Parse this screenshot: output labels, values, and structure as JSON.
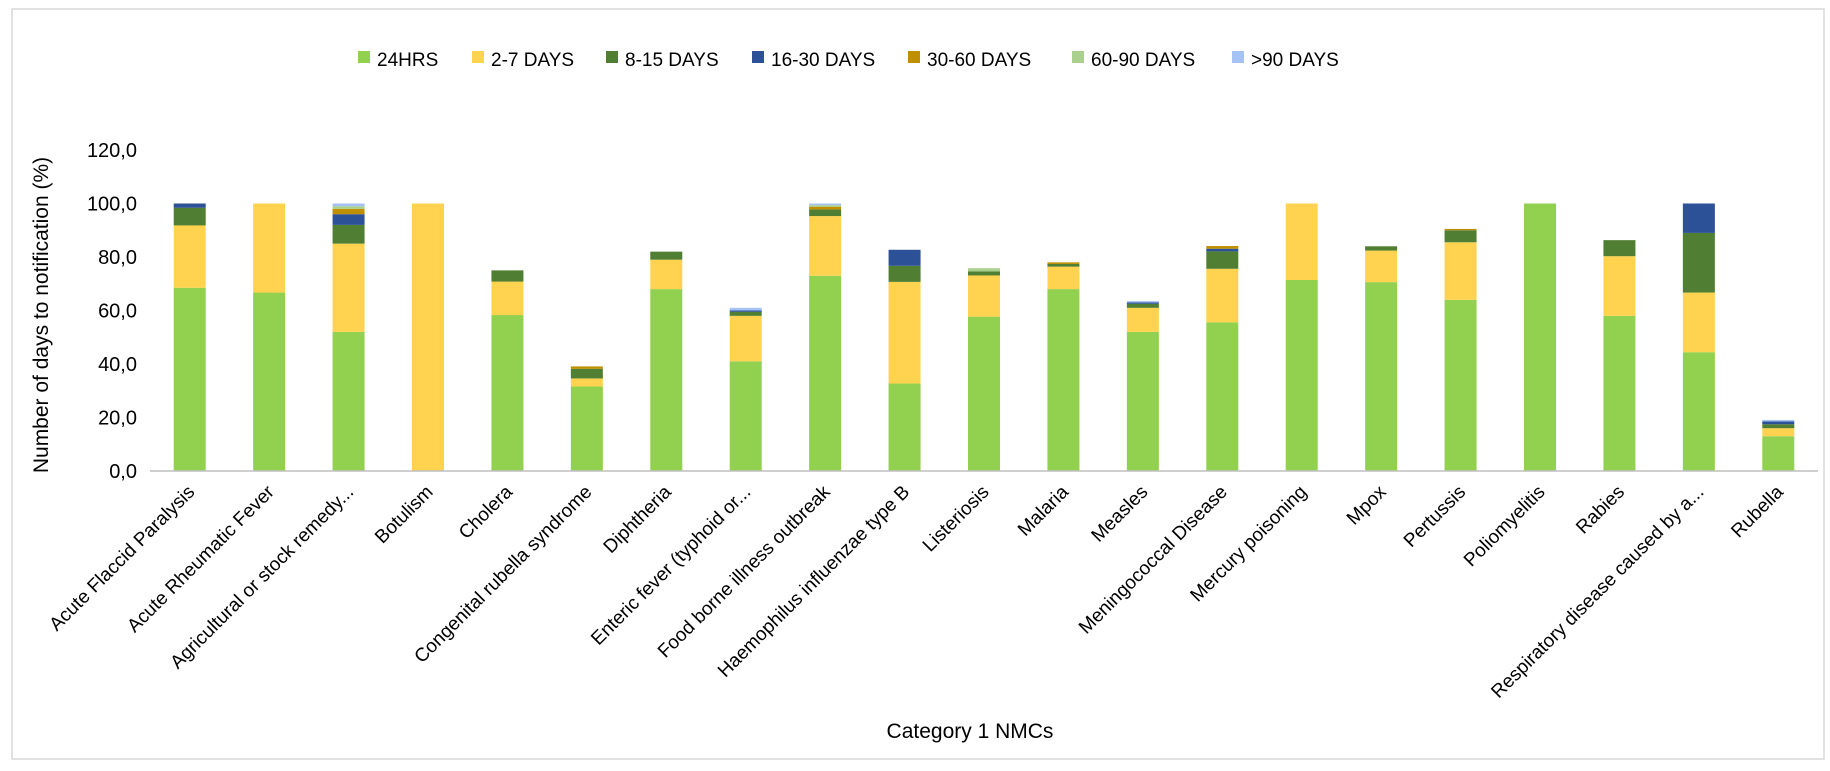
{
  "chart_data": {
    "type": "bar",
    "stacked": true,
    "title": "",
    "xlabel": "Category 1 NMCs",
    "ylabel": "Number of days to notification (%)",
    "ylim": [
      0,
      120
    ],
    "yticks": [
      0,
      20,
      40,
      60,
      80,
      100,
      120
    ],
    "ytick_labels": [
      "0,0",
      "20,0",
      "40,0",
      "60,0",
      "80,0",
      "100,0",
      "120,0"
    ],
    "grid": false,
    "legend_position": "top",
    "categories": [
      "Acute Flaccid Paralysis",
      "Acute Rheumatic Fever",
      "Agricultural or stock remedy...",
      "Botulism",
      "Cholera",
      "Congenital rubella syndrome",
      "Diphtheria",
      "Enteric fever (typhoid or...",
      "Food borne illness outbreak",
      "Haemophilus influenzae type B",
      "Listeriosis",
      "Malaria",
      "Measles",
      "Meningococcal Disease",
      "Mercury poisoning",
      "Mpox",
      "Pertussis",
      "Poliomyelitis",
      "Rabies",
      "Respiratory disease caused by a...",
      "Rubella"
    ],
    "series": [
      {
        "name": "24HRS",
        "color": "#92d050",
        "values": [
          68.5,
          66.7,
          52.0,
          0,
          58.3,
          31.6,
          68.0,
          41.0,
          73.0,
          32.7,
          57.7,
          68.0,
          52.0,
          55.6,
          71.4,
          70.6,
          64.0,
          100,
          58.0,
          44.4,
          13.0
        ]
      },
      {
        "name": "2-7 DAYS",
        "color": "#ffd34f",
        "values": [
          23.3,
          33.3,
          33.0,
          100,
          12.5,
          3.0,
          11.0,
          17.0,
          22.3,
          38.0,
          15.4,
          8.4,
          9.0,
          20.0,
          28.6,
          11.8,
          21.5,
          0,
          22.3,
          22.3,
          3.0
        ]
      },
      {
        "name": "8-15 DAYS",
        "color": "#507e32",
        "values": [
          6.6,
          0,
          7.0,
          0,
          4.2,
          3.6,
          3.0,
          1.5,
          2.5,
          6.0,
          1.5,
          1.0,
          1.5,
          6.5,
          0,
          1.6,
          4.5,
          0,
          6.0,
          22.3,
          1.5
        ]
      },
      {
        "name": "16-30 DAYS",
        "color": "#2c5196",
        "values": [
          1.6,
          0,
          4.0,
          0,
          0,
          0,
          0,
          0.5,
          0,
          6.0,
          0,
          0,
          0.5,
          1.0,
          0,
          0,
          0,
          0,
          0,
          11.0,
          1.0
        ]
      },
      {
        "name": "30-60 DAYS",
        "color": "#bf8f00",
        "values": [
          0,
          0,
          2.0,
          0,
          0,
          0.9,
          0,
          0,
          1.0,
          0,
          0,
          0.6,
          0,
          1.0,
          0,
          0,
          0.5,
          0,
          0,
          0,
          0
        ]
      },
      {
        "name": "60-90 DAYS",
        "color": "#a9d08e",
        "values": [
          0,
          0,
          1.0,
          0,
          0,
          0,
          0,
          0,
          0.6,
          0,
          1.2,
          0,
          0,
          0,
          0,
          0,
          0,
          0,
          0,
          0,
          0
        ]
      },
      {
        "name": ">90 DAYS",
        "color": "#a4c2f4",
        "values": [
          0,
          0,
          1.0,
          0,
          0,
          0,
          0,
          1.0,
          0.6,
          0,
          0,
          0,
          0.5,
          0,
          0,
          0,
          0,
          0,
          0,
          0,
          0.6
        ]
      }
    ]
  }
}
